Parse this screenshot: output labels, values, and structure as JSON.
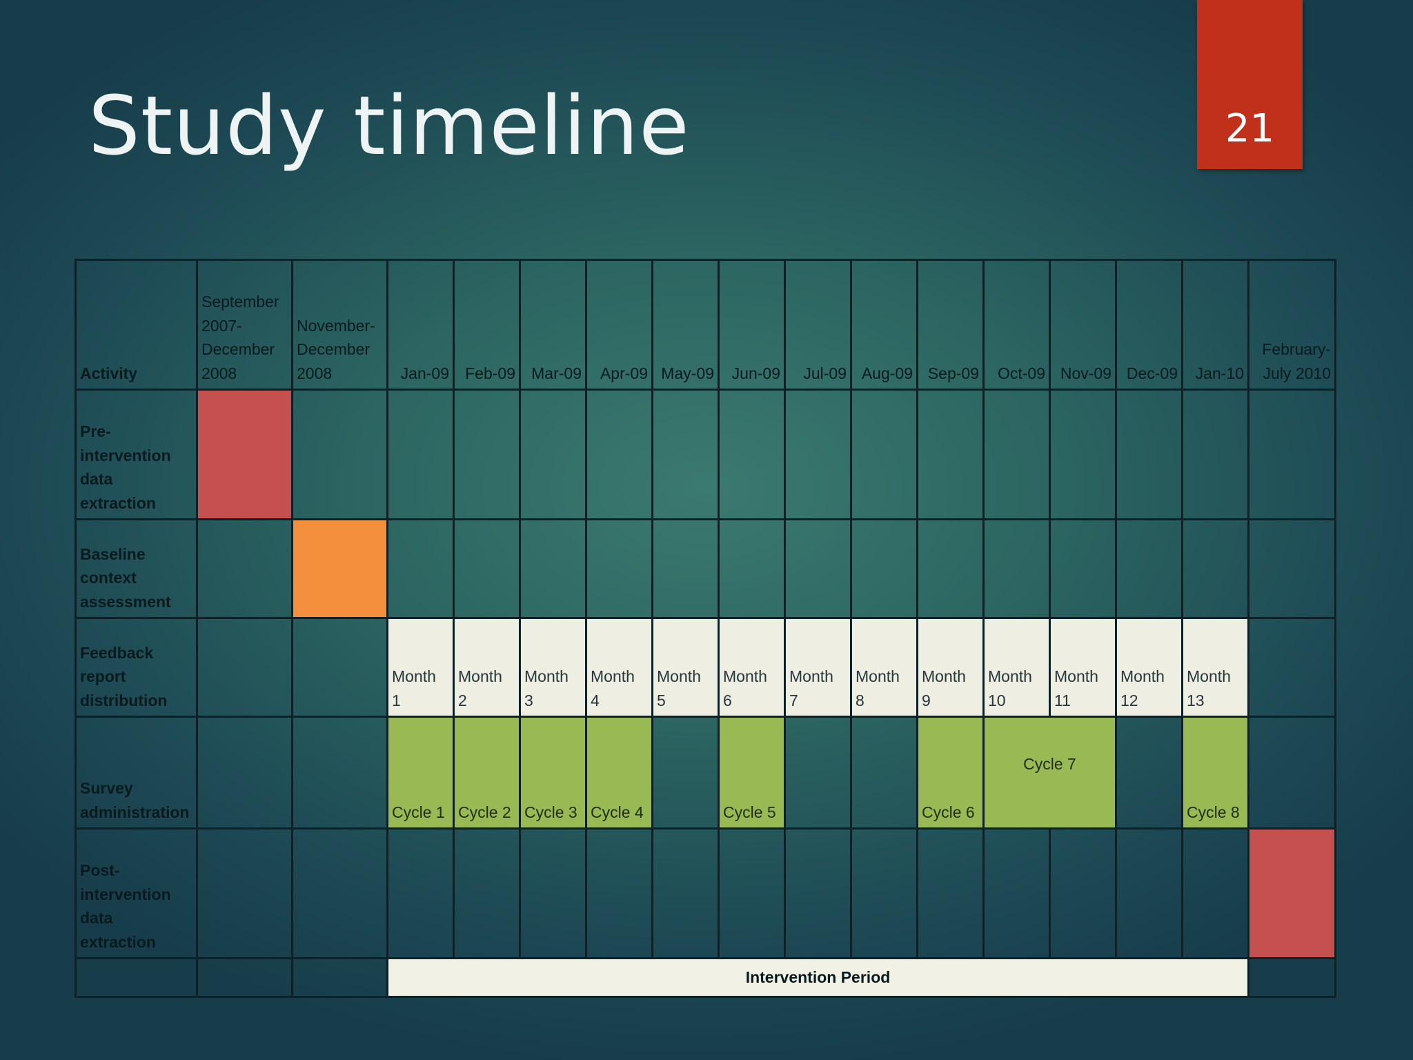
{
  "slide": {
    "title": "Study timeline",
    "number": "21"
  },
  "table": {
    "header": [
      "Activity",
      "September 2007-December 2008",
      "November-December 2008",
      "Jan-09",
      "Feb-09",
      "Mar-09",
      "Apr-09",
      "May-09",
      "Jun-09",
      "Jul-09",
      "Aug-09",
      "Sep-09",
      "Oct-09",
      "Nov-09",
      "Dec-09",
      "Jan-10",
      "February-July 2010"
    ],
    "rows": [
      {
        "activity": "Pre-intervention data extraction"
      },
      {
        "activity": "Baseline context assessment"
      },
      {
        "activity": "Feedback report distribution",
        "months": [
          "Month 1",
          "Month 2",
          "Month 3",
          "Month 4",
          "Month 5",
          "Month 6",
          "Month 7",
          "Month 8",
          "Month 9",
          "Month 10",
          "Month 11",
          "Month 12",
          "Month 13"
        ]
      },
      {
        "activity": "Survey administration",
        "cycles": [
          "Cycle 1",
          "Cycle 2",
          "Cycle 3",
          "Cycle 4",
          "Cycle 5",
          "Cycle 6",
          "Cycle 7",
          "Cycle 8"
        ]
      },
      {
        "activity": "Post-intervention data extraction"
      }
    ],
    "intervention_label": "Intervention Period"
  },
  "colors": {
    "pre_extraction": "#c4504f",
    "baseline": "#f4903d",
    "feedback": "#eeeee2",
    "survey": "#99b955",
    "slide_number_bg": "#c1301b"
  }
}
